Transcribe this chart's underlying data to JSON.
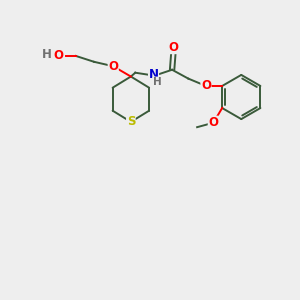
{
  "bg_color": "#eeeeee",
  "bond_color": "#3a5a3a",
  "bond_width": 1.4,
  "atom_colors": {
    "O": "#ff0000",
    "N": "#0000cc",
    "S": "#bbbb00",
    "H": "#707070",
    "C": "#3a5a3a"
  },
  "font_size": 8.5,
  "fig_size": [
    3.0,
    3.0
  ],
  "dpi": 100,
  "xlim": [
    0,
    10
  ],
  "ylim": [
    0,
    10
  ]
}
